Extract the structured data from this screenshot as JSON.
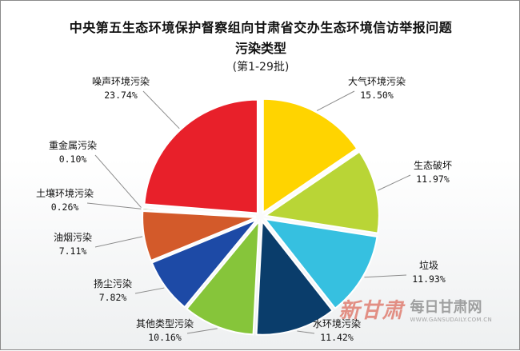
{
  "chart_data": {
    "type": "pie",
    "title": "中央第五生态环境保护督察组向甘肃省交办生态环境信访举报问题",
    "subtitle": "污染类型",
    "note": "(第1-29批)",
    "slices": [
      {
        "label": "大气环境污染",
        "value": 15.5,
        "pct_text": "15.50%",
        "color": "#ffd400"
      },
      {
        "label": "生态破坏",
        "value": 11.97,
        "pct_text": "11.97%",
        "color": "#b9d536"
      },
      {
        "label": "垃圾",
        "value": 11.93,
        "pct_text": "11.93%",
        "color": "#36c0e0"
      },
      {
        "label": "水环境污染",
        "value": 11.42,
        "pct_text": "11.42%",
        "color": "#0a3d6b"
      },
      {
        "label": "其他类型污染",
        "value": 10.16,
        "pct_text": "10.16%",
        "color": "#86c53a"
      },
      {
        "label": "扬尘污染",
        "value": 7.82,
        "pct_text": "7.82%",
        "color": "#1d4aa6"
      },
      {
        "label": "油烟污染",
        "value": 7.11,
        "pct_text": "7.11%",
        "color": "#d35a2a"
      },
      {
        "label": "土壤环境污染",
        "value": 0.26,
        "pct_text": "0.26%",
        "color": "#4a7f2a"
      },
      {
        "label": "重金属污染",
        "value": 0.1,
        "pct_text": "0.10%",
        "color": "#7a7a7a"
      },
      {
        "label": "噪声环境污染",
        "value": 23.74,
        "pct_text": "23.74%",
        "color": "#e8202a"
      }
    ]
  },
  "watermark": {
    "logo_text": "新甘肃",
    "name": "每日甘肃网",
    "url": "WWW.GANSUDAILY.COM.CN"
  }
}
